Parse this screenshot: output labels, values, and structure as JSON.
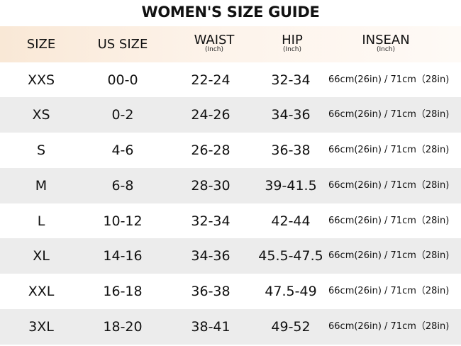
{
  "title": "WOMEN'S SIZE GUIDE",
  "colors": {
    "header_gradient_start": "#f9e8d6",
    "header_gradient_end": "#fefaf6",
    "row_shade": "#ececec",
    "text": "#111111"
  },
  "header": {
    "size": "SIZE",
    "us_size": "US SIZE",
    "waist": "WAIST",
    "waist_unit": "(Inch)",
    "hip": "HIP",
    "hip_unit": "(Inch)",
    "insean": "INSEAN",
    "insean_unit": "(Inch)"
  },
  "rows": [
    {
      "size": "XXS",
      "us": "00-0",
      "waist": "22-24",
      "hip": "32-34",
      "inseam": "66cm(26in) / 71cm（28in)"
    },
    {
      "size": "XS",
      "us": "0-2",
      "waist": "24-26",
      "hip": "34-36",
      "inseam": "66cm(26in) / 71cm（28in)"
    },
    {
      "size": "S",
      "us": "4-6",
      "waist": "26-28",
      "hip": "36-38",
      "inseam": "66cm(26in) / 71cm（28in)"
    },
    {
      "size": "M",
      "us": "6-8",
      "waist": "28-30",
      "hip": "39-41.5",
      "inseam": "66cm(26in) / 71cm（28in)"
    },
    {
      "size": "L",
      "us": "10-12",
      "waist": "32-34",
      "hip": "42-44",
      "inseam": "66cm(26in) / 71cm（28in)"
    },
    {
      "size": "XL",
      "us": "14-16",
      "waist": "34-36",
      "hip": "45.5-47.5",
      "inseam": "66cm(26in) / 71cm（28in)"
    },
    {
      "size": "XXL",
      "us": "16-18",
      "waist": "36-38",
      "hip": "47.5-49",
      "inseam": "66cm(26in) / 71cm（28in)"
    },
    {
      "size": "3XL",
      "us": "18-20",
      "waist": "38-41",
      "hip": "49-52",
      "inseam": "66cm(26in) / 71cm（28in)"
    }
  ]
}
